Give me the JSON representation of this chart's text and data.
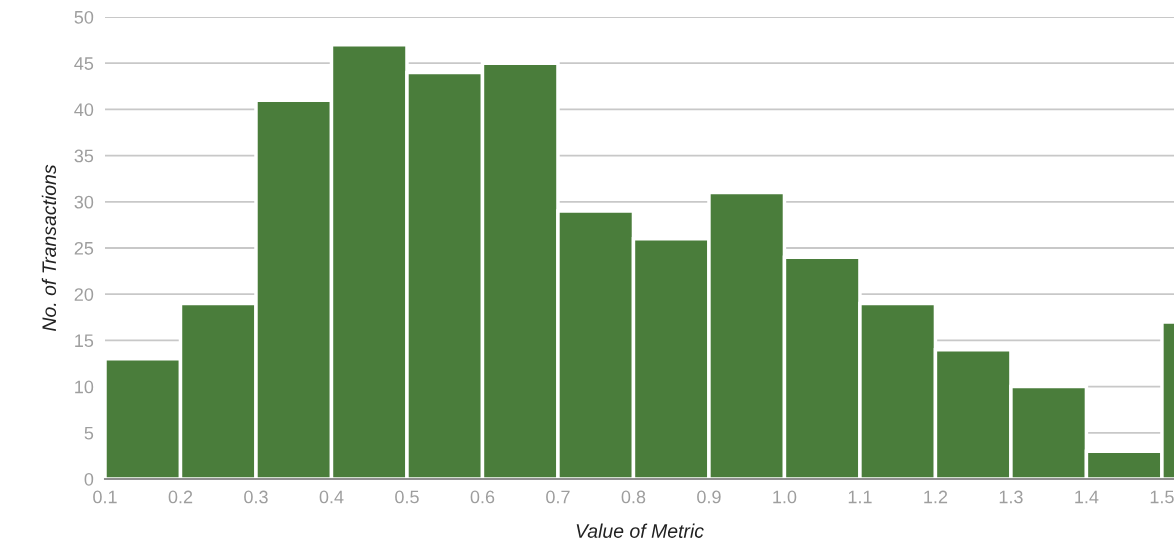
{
  "chart_data": {
    "type": "histogram",
    "xlabel": "Value of Metric",
    "ylabel": "No. of Transactions",
    "bins": [
      0.1,
      0.2,
      0.3,
      0.4,
      0.5,
      0.6,
      0.7,
      0.8,
      0.9,
      1.0,
      1.1,
      1.2,
      1.3,
      1.4,
      1.5,
      1.6
    ],
    "values": [
      13,
      19,
      41,
      47,
      44,
      45,
      29,
      26,
      31,
      24,
      19,
      14,
      10,
      3,
      17
    ],
    "color": "#4a7d3b",
    "xlim": [
      0.1,
      1.516
    ],
    "xticks": [
      0.1,
      0.2,
      0.3,
      0.4,
      0.5,
      0.6,
      0.7,
      0.8,
      0.9,
      {
        "value": 1.0,
        "label": "1.0"
      },
      1.1,
      1.2,
      1.3,
      1.4,
      1.5
    ],
    "ylim": [
      0,
      50
    ],
    "yticks": [
      0,
      5,
      10,
      15,
      20,
      25,
      30,
      35,
      40,
      45,
      50
    ],
    "grid": "y"
  }
}
